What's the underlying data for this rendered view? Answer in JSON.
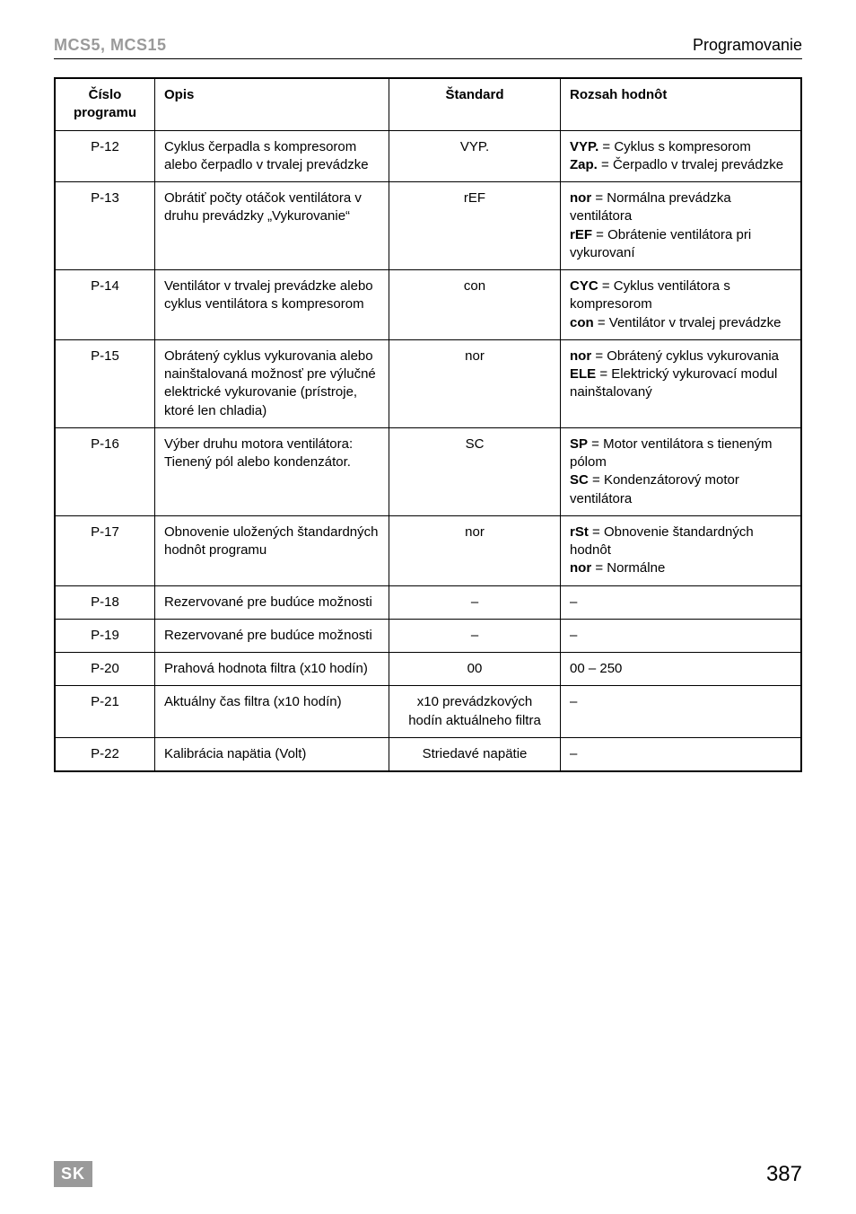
{
  "header": {
    "left": "MCS5, MCS15",
    "right": "Programovanie"
  },
  "table": {
    "headers": {
      "num": "Číslo programu",
      "opis": "Opis",
      "std": "Štandard",
      "rozsah": "Rozsah hodnôt"
    },
    "rows": [
      {
        "num": "P-12",
        "opis": "Cyklus čerpadla s kompresorom alebo čerpadlo v trvalej prevádzke",
        "std": "VYP.",
        "rozsah": "<b>VYP.</b> = Cyklus s kompresorom<br><b>Zap.</b> = Čerpadlo v trvalej prevádzke"
      },
      {
        "num": "P-13",
        "opis": "Obrátiť počty otáčok ventilátora v druhu prevádzky „Vykurovanie“",
        "std": "rEF",
        "rozsah": "<b>nor</b> = Normálna prevádzka ventilátora<br><b>rEF</b> = Obrátenie ventilátora pri vykurovaní"
      },
      {
        "num": "P-14",
        "opis": "Ventilátor v trvalej prevádzke alebo cyklus ventilátora s kompresorom",
        "std": "con",
        "rozsah": "<b>CYC</b> = Cyklus ventilátora s kompresorom<br><b>con</b> = Ventilátor v trvalej prevádzke"
      },
      {
        "num": "P-15",
        "opis": "Obrátený cyklus vykurovania alebo nainštalovaná možnosť pre výlučné elektrické vykurovanie (prístroje, ktoré len chladia)",
        "std": "nor",
        "rozsah": "<b>nor</b> = Obrátený cyklus vykurovania<br><b>ELE</b> = Elektrický vykurovací modul nainštalovaný"
      },
      {
        "num": "P-16",
        "opis": "Výber druhu motora ventilátora: Tienený pól alebo kondenzátor.",
        "std": "SC",
        "rozsah": "<b>SP</b> = Motor ventilátora s tieneným pólom<br><b>SC</b> = Kondenzátorový motor ventilátora"
      },
      {
        "num": "P-17",
        "opis": "Obnovenie uložených štandardných hodnôt programu",
        "std": "nor",
        "rozsah": "<b>rSt</b> = Obnovenie štandardných hodnôt<br><b>nor</b> = Normálne"
      },
      {
        "num": "P-18",
        "opis": "Rezervované pre budúce možnosti",
        "std": "–",
        "rozsah": "–"
      },
      {
        "num": "P-19",
        "opis": "Rezervované pre budúce možnosti",
        "std": "–",
        "rozsah": "–"
      },
      {
        "num": "P-20",
        "opis": "Prahová hodnota filtra (x10 hodín)",
        "std": "00",
        "rozsah": "00 – 250"
      },
      {
        "num": "P-21",
        "opis": "Aktuálny čas filtra (x10 hodín)",
        "std": "x10 prevádzkových hodín aktuálneho filtra",
        "rozsah": "–"
      },
      {
        "num": "P-22",
        "opis": "Kalibrácia napätia (Volt)",
        "std": "Striedavé napätie",
        "rozsah": "–"
      }
    ]
  },
  "footer": {
    "badge": "SK",
    "page": "387"
  }
}
